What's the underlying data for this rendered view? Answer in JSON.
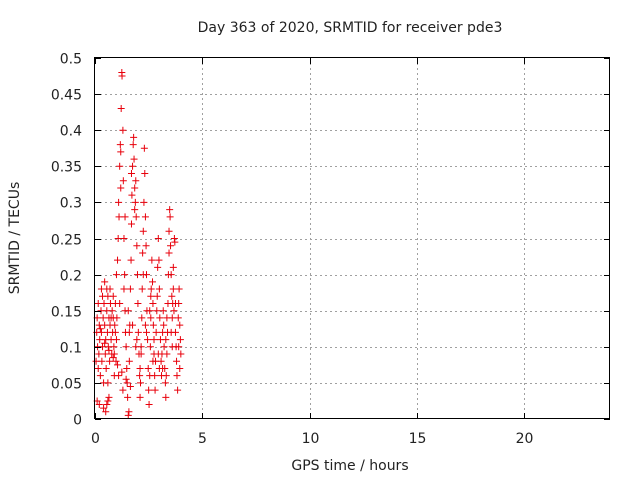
{
  "chart_data": {
    "type": "scatter",
    "title": "Day 363 of 2020, SRMTID for receiver pde3",
    "xlabel": "GPS time / hours",
    "ylabel": "SRMTID / TECUs",
    "xlim": [
      0,
      24
    ],
    "ylim": [
      0,
      0.5
    ],
    "xticks": [
      0,
      5,
      10,
      15,
      20
    ],
    "xtick_labels": [
      "0",
      "5",
      "10",
      "15",
      "20"
    ],
    "yticks": [
      0,
      0.05,
      0.1,
      0.15,
      0.2,
      0.25,
      0.3,
      0.35,
      0.4,
      0.45,
      0.5
    ],
    "ytick_labels": [
      "0",
      "0.05",
      "0.1",
      "0.15",
      "0.2",
      "0.25",
      "0.3",
      "0.35",
      "0.4",
      "0.45",
      "0.5"
    ],
    "grid": true,
    "marker": "+",
    "marker_color": "#e8000b",
    "series": [
      {
        "name": "SRMTID",
        "points": [
          [
            0.05,
            0.08
          ],
          [
            0.08,
            0.12
          ],
          [
            0.1,
            0.14
          ],
          [
            0.12,
            0.1
          ],
          [
            0.15,
            0.07
          ],
          [
            0.18,
            0.09
          ],
          [
            0.2,
            0.13
          ],
          [
            0.22,
            0.11
          ],
          [
            0.25,
            0.06
          ],
          [
            0.28,
            0.15
          ],
          [
            0.3,
            0.12
          ],
          [
            0.32,
            0.08
          ],
          [
            0.35,
            0.1
          ],
          [
            0.38,
            0.14
          ],
          [
            0.4,
            0.05
          ],
          [
            0.42,
            0.16
          ],
          [
            0.45,
            0.13
          ],
          [
            0.48,
            0.09
          ],
          [
            0.5,
            0.11
          ],
          [
            0.52,
            0.07
          ],
          [
            0.55,
            0.15
          ],
          [
            0.58,
            0.12
          ],
          [
            0.6,
            0.17
          ],
          [
            0.62,
            0.1
          ],
          [
            0.65,
            0.14
          ],
          [
            0.68,
            0.08
          ],
          [
            0.7,
            0.13
          ],
          [
            0.72,
            0.16
          ],
          [
            0.75,
            0.11
          ],
          [
            0.78,
            0.09
          ],
          [
            0.8,
            0.15
          ],
          [
            0.82,
            0.12
          ],
          [
            0.85,
            0.14
          ],
          [
            0.88,
            0.1
          ],
          [
            0.9,
            0.06
          ],
          [
            0.92,
            0.13
          ],
          [
            0.95,
            0.16
          ],
          [
            0.98,
            0.08
          ],
          [
            1.0,
            0.11
          ],
          [
            1.02,
            0.14
          ],
          [
            0.1,
            0.025
          ],
          [
            0.2,
            0.02
          ],
          [
            0.4,
            0.015
          ],
          [
            0.5,
            0.01
          ],
          [
            0.55,
            0.02
          ],
          [
            0.6,
            0.025
          ],
          [
            0.3,
            0.18
          ],
          [
            0.45,
            0.19
          ],
          [
            0.7,
            0.18
          ],
          [
            0.85,
            0.17
          ],
          [
            1.0,
            0.2
          ],
          [
            1.05,
            0.22
          ],
          [
            1.08,
            0.25
          ],
          [
            1.1,
            0.3
          ],
          [
            1.12,
            0.28
          ],
          [
            1.15,
            0.35
          ],
          [
            1.18,
            0.38
          ],
          [
            1.2,
            0.37
          ],
          [
            1.22,
            0.43
          ],
          [
            1.25,
            0.48
          ],
          [
            1.26,
            0.475
          ],
          [
            1.3,
            0.4
          ],
          [
            1.32,
            0.33
          ],
          [
            1.35,
            0.25
          ],
          [
            1.38,
            0.2
          ],
          [
            1.4,
            0.15
          ],
          [
            1.42,
            0.12
          ],
          [
            1.45,
            0.1
          ],
          [
            1.48,
            0.07
          ],
          [
            1.5,
            0.05
          ],
          [
            1.52,
            0.03
          ],
          [
            1.55,
            0.005
          ],
          [
            1.58,
            0.01
          ],
          [
            1.6,
            0.08
          ],
          [
            1.62,
            0.13
          ],
          [
            1.65,
            0.18
          ],
          [
            1.68,
            0.22
          ],
          [
            1.7,
            0.27
          ],
          [
            1.72,
            0.31
          ],
          [
            1.75,
            0.35
          ],
          [
            1.78,
            0.38
          ],
          [
            1.8,
            0.39
          ],
          [
            1.82,
            0.36
          ],
          [
            1.85,
            0.32
          ],
          [
            1.88,
            0.3
          ],
          [
            1.9,
            0.33
          ],
          [
            1.92,
            0.28
          ],
          [
            1.95,
            0.24
          ],
          [
            1.98,
            0.2
          ],
          [
            2.0,
            0.16
          ],
          [
            2.02,
            0.12
          ],
          [
            2.05,
            0.09
          ],
          [
            2.08,
            0.06
          ],
          [
            2.1,
            0.03
          ],
          [
            2.12,
            0.05
          ],
          [
            2.15,
            0.1
          ],
          [
            2.18,
            0.14
          ],
          [
            2.2,
            0.18
          ],
          [
            2.22,
            0.23
          ],
          [
            2.25,
            0.26
          ],
          [
            2.28,
            0.3
          ],
          [
            2.3,
            0.375
          ],
          [
            2.32,
            0.34
          ],
          [
            2.35,
            0.28
          ],
          [
            2.38,
            0.24
          ],
          [
            2.4,
            0.2
          ],
          [
            2.42,
            0.15
          ],
          [
            2.45,
            0.11
          ],
          [
            2.48,
            0.07
          ],
          [
            2.5,
            0.04
          ],
          [
            2.52,
            0.02
          ],
          [
            2.55,
            0.06
          ],
          [
            2.58,
            0.1
          ],
          [
            2.6,
            0.14
          ],
          [
            2.62,
            0.18
          ],
          [
            2.65,
            0.22
          ],
          [
            2.68,
            0.19
          ],
          [
            2.7,
            0.16
          ],
          [
            2.72,
            0.13
          ],
          [
            2.75,
            0.09
          ],
          [
            2.78,
            0.06
          ],
          [
            2.8,
            0.04
          ],
          [
            2.82,
            0.08
          ],
          [
            2.85,
            0.12
          ],
          [
            2.88,
            0.15
          ],
          [
            2.9,
            0.17
          ],
          [
            2.92,
            0.21
          ],
          [
            2.95,
            0.25
          ],
          [
            2.98,
            0.22
          ],
          [
            3.0,
            0.18
          ],
          [
            3.02,
            0.14
          ],
          [
            3.05,
            0.11
          ],
          [
            3.08,
            0.08
          ],
          [
            3.1,
            0.06
          ],
          [
            3.12,
            0.09
          ],
          [
            3.15,
            0.12
          ],
          [
            3.18,
            0.15
          ],
          [
            3.2,
            0.13
          ],
          [
            3.22,
            0.1
          ],
          [
            3.25,
            0.07
          ],
          [
            3.28,
            0.05
          ],
          [
            3.3,
            0.03
          ],
          [
            3.32,
            0.06
          ],
          [
            3.35,
            0.09
          ],
          [
            3.38,
            0.12
          ],
          [
            3.4,
            0.16
          ],
          [
            3.42,
            0.2
          ],
          [
            3.45,
            0.26
          ],
          [
            3.48,
            0.29
          ],
          [
            3.5,
            0.28
          ],
          [
            3.52,
            0.24
          ],
          [
            3.55,
            0.2
          ],
          [
            3.58,
            0.17
          ],
          [
            3.6,
            0.14
          ],
          [
            3.62,
            0.16
          ],
          [
            3.65,
            0.18
          ],
          [
            3.68,
            0.15
          ],
          [
            3.7,
            0.25
          ],
          [
            3.72,
            0.245
          ],
          [
            3.75,
            0.12
          ],
          [
            3.78,
            0.1
          ],
          [
            3.8,
            0.08
          ],
          [
            3.82,
            0.06
          ],
          [
            3.85,
            0.04
          ],
          [
            3.88,
            0.14
          ],
          [
            3.9,
            0.16
          ],
          [
            3.92,
            0.18
          ],
          [
            3.95,
            0.13
          ],
          [
            3.98,
            0.11
          ],
          [
            4.0,
            0.09
          ],
          [
            0.6,
            0.05
          ],
          [
            0.65,
            0.03
          ],
          [
            0.9,
            0.09
          ],
          [
            1.1,
            0.06
          ],
          [
            1.3,
            0.04
          ],
          [
            1.6,
            0.12
          ],
          [
            1.9,
            0.1
          ],
          [
            2.1,
            0.07
          ],
          [
            2.4,
            0.12
          ],
          [
            2.7,
            0.08
          ],
          [
            3.0,
            0.07
          ],
          [
            3.3,
            0.11
          ],
          [
            3.6,
            0.1
          ],
          [
            3.9,
            0.1
          ],
          [
            0.15,
            0.16
          ],
          [
            0.35,
            0.17
          ],
          [
            0.55,
            0.18
          ],
          [
            0.75,
            0.14
          ],
          [
            0.95,
            0.12
          ],
          [
            1.15,
            0.16
          ],
          [
            1.35,
            0.18
          ],
          [
            1.55,
            0.15
          ],
          [
            1.75,
            0.13
          ],
          [
            1.95,
            0.11
          ],
          [
            2.15,
            0.09
          ],
          [
            2.35,
            0.13
          ],
          [
            2.55,
            0.15
          ],
          [
            2.75,
            0.11
          ],
          [
            2.95,
            0.09
          ],
          [
            3.15,
            0.07
          ],
          [
            3.35,
            0.14
          ],
          [
            3.55,
            0.12
          ],
          [
            3.75,
            0.16
          ],
          [
            3.95,
            0.07
          ],
          [
            1.2,
            0.32
          ],
          [
            1.4,
            0.28
          ],
          [
            1.7,
            0.34
          ],
          [
            1.85,
            0.29
          ],
          [
            2.25,
            0.2
          ],
          [
            2.6,
            0.17
          ],
          [
            3.45,
            0.23
          ],
          [
            3.65,
            0.21
          ],
          [
            0.25,
            0.125
          ],
          [
            0.45,
            0.105
          ],
          [
            0.65,
            0.095
          ],
          [
            0.85,
            0.085
          ],
          [
            1.05,
            0.075
          ],
          [
            1.25,
            0.065
          ],
          [
            1.45,
            0.055
          ],
          [
            1.65,
            0.045
          ]
        ]
      }
    ]
  }
}
